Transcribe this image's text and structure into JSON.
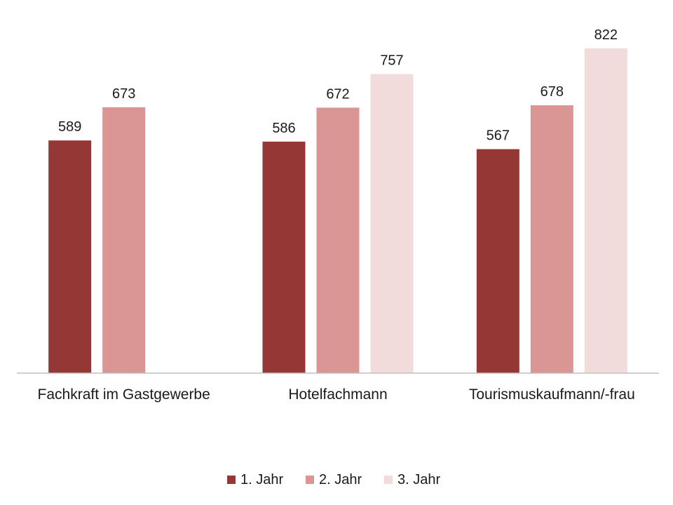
{
  "chart_data": {
    "type": "bar",
    "categories": [
      "Fachkraft im Gastgewerbe",
      "Hotelfachmann",
      "Tourismuskaufmann/-frau"
    ],
    "series": [
      {
        "name": "1. Jahr",
        "values": [
          589,
          586,
          567
        ],
        "color": "#953735"
      },
      {
        "name": "2. Jahr",
        "values": [
          673,
          672,
          678
        ],
        "color": "#d99694"
      },
      {
        "name": "3. Jahr",
        "values": [
          null,
          757,
          822
        ],
        "color": "#f2dcdb"
      }
    ],
    "ylim": [
      0,
      822
    ],
    "grid": false,
    "legend": "bottom",
    "axis_color": "#bfbfbf"
  }
}
